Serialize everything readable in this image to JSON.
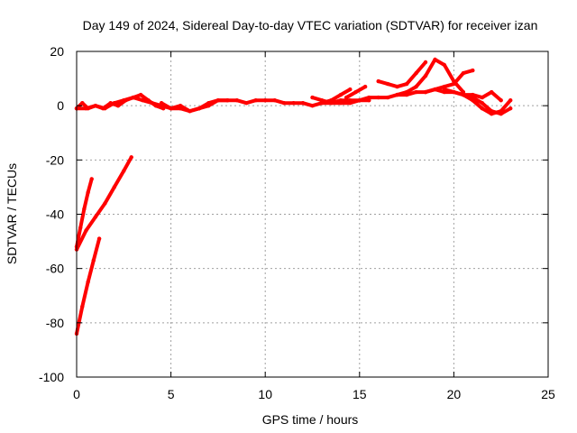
{
  "chart_data": {
    "type": "line",
    "title": "Day 149 of 2024, Sidereal Day-to-day VTEC variation (SDTVAR) for receiver izan",
    "xlabel": "GPS time / hours",
    "ylabel": "SDTVAR / TECUs",
    "xlim": [
      0,
      25
    ],
    "ylim": [
      -100,
      20
    ],
    "x_ticks": [
      0,
      5,
      10,
      15,
      20,
      25
    ],
    "y_ticks": [
      -100,
      -80,
      -60,
      -40,
      -20,
      0,
      20
    ],
    "grid": true,
    "series_color": "#ff0000",
    "series": [
      {
        "x": [
          0.0,
          0.5,
          1.0,
          1.5,
          2.0,
          2.5,
          3.0,
          3.5,
          4.0,
          4.5,
          5.0,
          5.5,
          6.0,
          6.5,
          7.0,
          7.5,
          8.0,
          8.5,
          9.0,
          9.5,
          10.0,
          10.5,
          11.0,
          11.5,
          12.0,
          12.5,
          13.0,
          13.5,
          14.0,
          14.5,
          15.0,
          15.5,
          16.0,
          16.5,
          17.0,
          17.5,
          18.0,
          18.5,
          19.0,
          19.5,
          20.0,
          20.5,
          21.0,
          21.5,
          22.0,
          22.5,
          23.0
        ],
        "y": [
          -1,
          -1,
          0,
          -1,
          1,
          2,
          3,
          2,
          1,
          0,
          -1,
          -1,
          -2,
          -1,
          1,
          2,
          2,
          2,
          1,
          2,
          2,
          2,
          1,
          1,
          1,
          0,
          1,
          1,
          2,
          2,
          2,
          3,
          3,
          3,
          4,
          4,
          5,
          5,
          6,
          5,
          5,
          4,
          3,
          1,
          -2,
          -3,
          -1
        ]
      },
      {
        "x": [
          0.0,
          0.2,
          0.4,
          0.6,
          0.8
        ],
        "y": [
          -52,
          -45,
          -38,
          -32,
          -27
        ]
      },
      {
        "x": [
          0.0,
          0.5,
          1.0,
          1.5,
          2.0,
          2.5,
          2.9
        ],
        "y": [
          -53,
          -46,
          -41,
          -36,
          -30,
          -24,
          -19
        ]
      },
      {
        "x": [
          0.0,
          0.3,
          0.6,
          0.9,
          1.2
        ],
        "y": [
          -84,
          -74,
          -65,
          -57,
          -49
        ]
      },
      {
        "x": [
          0.0,
          0.3,
          0.6,
          1.0,
          1.4,
          1.8,
          2.2,
          2.6,
          3.0,
          3.4,
          3.8,
          4.2,
          4.6
        ],
        "y": [
          -1,
          1,
          -1,
          0,
          -1,
          1,
          0,
          2,
          3,
          4,
          2,
          0,
          -1
        ]
      },
      {
        "x": [
          4.5,
          5.0,
          5.5,
          6.0,
          6.5,
          7.0,
          7.5,
          8.0
        ],
        "y": [
          1,
          -1,
          0,
          -2,
          -1,
          0,
          2,
          2
        ]
      },
      {
        "x": [
          12.5,
          13.0,
          13.5,
          14.0,
          14.5,
          15.0,
          15.5
        ],
        "y": [
          3,
          2,
          1,
          1,
          1,
          2,
          2
        ]
      },
      {
        "x": [
          13.0,
          13.5,
          14.0,
          14.5
        ],
        "y": [
          1,
          2,
          4,
          6
        ]
      },
      {
        "x": [
          14.3,
          14.8,
          15.3
        ],
        "y": [
          3,
          5,
          7
        ]
      },
      {
        "x": [
          16.0,
          16.5,
          17.0,
          17.5,
          18.0,
          18.5
        ],
        "y": [
          9,
          8,
          7,
          8,
          12,
          16
        ]
      },
      {
        "x": [
          17.0,
          17.5,
          18.0,
          18.5,
          19.0,
          19.5,
          20.0,
          20.5
        ],
        "y": [
          4,
          5,
          7,
          11,
          17,
          15,
          9,
          5
        ]
      },
      {
        "x": [
          18.5,
          19.0,
          19.5,
          20.0,
          20.5,
          21.0
        ],
        "y": [
          5,
          6,
          7,
          8,
          12,
          13
        ]
      },
      {
        "x": [
          19.5,
          20.0,
          20.5,
          21.0,
          21.5,
          22.0,
          22.5
        ],
        "y": [
          6,
          5,
          4,
          4,
          3,
          5,
          2
        ]
      },
      {
        "x": [
          20.5,
          21.0,
          21.5,
          22.0,
          22.5,
          23.0
        ],
        "y": [
          4,
          2,
          -1,
          -3,
          -2,
          2
        ]
      }
    ]
  }
}
